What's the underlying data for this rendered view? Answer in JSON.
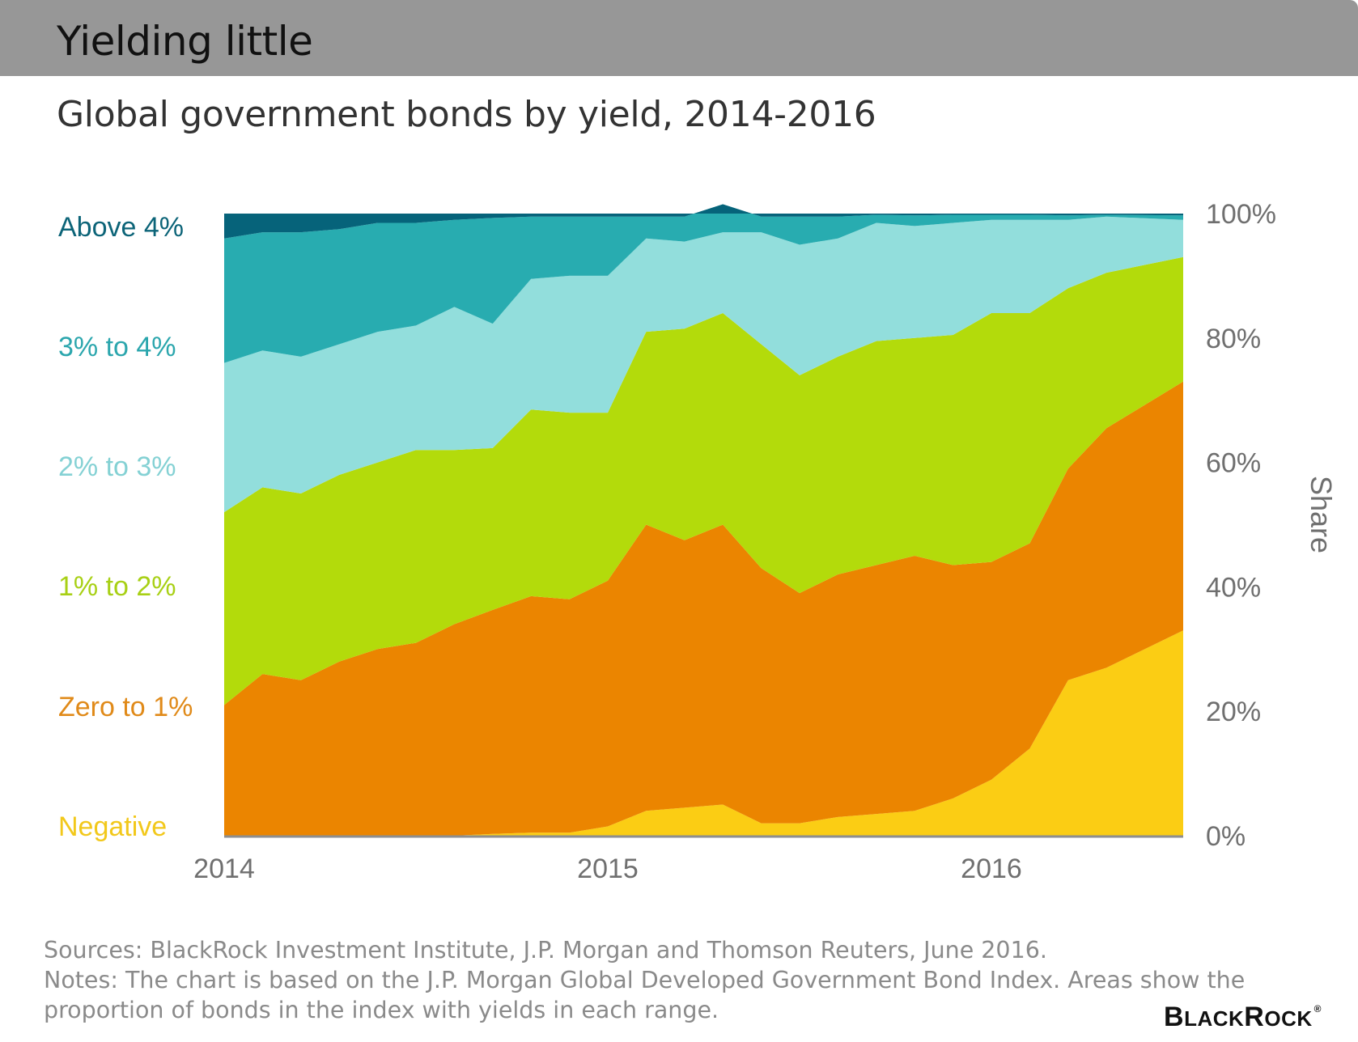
{
  "header": {
    "title": "Yielding little",
    "subtitle": "Global government bonds by yield, 2014-2016"
  },
  "chart_data": {
    "type": "area",
    "stacked": true,
    "title": "Global government bonds by yield, 2014-2016",
    "xlabel": "",
    "ylabel": "Share",
    "ylim": [
      0,
      100
    ],
    "x_ticks": [
      "2014",
      "2015",
      "2016"
    ],
    "x_tick_values": [
      2014.0,
      2015.0,
      2016.0
    ],
    "y_ticks": [
      "0%",
      "20%",
      "40%",
      "60%",
      "80%",
      "100%"
    ],
    "y_tick_values": [
      0,
      20,
      40,
      60,
      80,
      100
    ],
    "x": [
      2014.0,
      2014.1,
      2014.2,
      2014.3,
      2014.4,
      2014.5,
      2014.6,
      2014.7,
      2014.8,
      2014.9,
      2015.0,
      2015.1,
      2015.2,
      2015.3,
      2015.4,
      2015.5,
      2015.6,
      2015.7,
      2015.8,
      2015.9,
      2016.0,
      2016.1,
      2016.2,
      2016.3,
      2016.5
    ],
    "series": [
      {
        "name": "Negative",
        "color": "#FBCD14",
        "label_color": "#F2C81B",
        "values": [
          0,
          0,
          0,
          0,
          0,
          0,
          0,
          0.3,
          0.5,
          0.5,
          1.5,
          4,
          4.5,
          5,
          2,
          2,
          3,
          3.5,
          4,
          6,
          9,
          14,
          25,
          27,
          33
        ]
      },
      {
        "name": "Zero to 1%",
        "color": "#EB8500",
        "label_color": "#E08A19",
        "values": [
          21,
          26,
          25,
          28,
          30,
          31,
          34,
          36,
          38,
          37.5,
          39.5,
          46,
          43,
          45,
          41,
          37,
          39,
          40,
          41,
          37.5,
          35,
          33,
          34,
          38.5,
          40
        ]
      },
      {
        "name": "1% to 2%",
        "color": "#B3DB0B",
        "label_color": "#A8D015",
        "values": [
          31,
          30,
          30,
          30,
          30,
          31,
          28,
          26,
          30,
          30,
          27,
          31,
          34,
          34,
          36,
          35,
          35,
          36,
          35,
          37,
          40,
          37,
          29,
          25,
          20
        ]
      },
      {
        "name": "2% to 3%",
        "color": "#92DEDC",
        "label_color": "#84D1D4",
        "values": [
          24,
          22,
          22,
          21,
          21,
          20,
          23,
          20,
          21,
          22,
          22,
          15,
          14,
          13,
          18,
          21,
          19,
          19,
          18,
          18,
          15,
          15,
          11,
          9,
          6
        ]
      },
      {
        "name": "3% to 4%",
        "color": "#28ACB0",
        "label_color": "#2BA6AD",
        "values": [
          20,
          19,
          20,
          18.5,
          17.5,
          16.5,
          14,
          17,
          10,
          9.5,
          9.5,
          3.5,
          4,
          4.5,
          2.5,
          4.5,
          3.5,
          1.3,
          1.7,
          1.3,
          0.8,
          0.8,
          0.7,
          0.3,
          0.7
        ]
      },
      {
        "name": "Above 4%",
        "color": "#06637A",
        "label_color": "#0C6478",
        "values": [
          4,
          3,
          3,
          2.5,
          1.5,
          1.5,
          1,
          0.7,
          0.5,
          0.5,
          0.5,
          0.5,
          0.5,
          0.5,
          0.5,
          0.5,
          0.5,
          0.2,
          0.3,
          0.2,
          0.2,
          0.2,
          0.3,
          0.2,
          0.3
        ]
      }
    ]
  },
  "footer": {
    "sources": "Sources: BlackRock Investment Institute, J.P. Morgan and Thomson Reuters, June 2016.",
    "notes_line1": "Notes: The chart is based on the J.P. Morgan Global Developed Government Bond Index. Areas show the",
    "notes_line2": "proportion of bonds in the index with yields in each range."
  },
  "logo": {
    "big_b": "B",
    "lack": "LACK",
    "big_r": "R",
    "ock": "OCK",
    "reg": "®"
  }
}
